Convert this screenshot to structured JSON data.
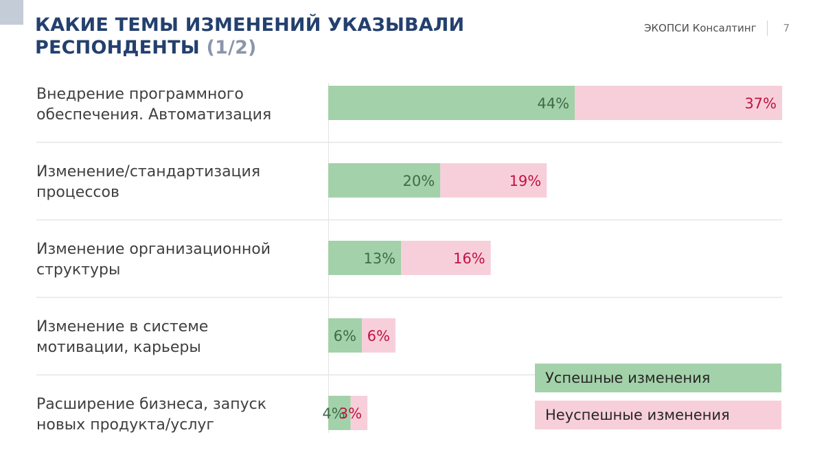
{
  "header": {
    "title_line1": "КАКИЕ ТЕМЫ ИЗМЕНЕНИЙ УКАЗЫВАЛИ",
    "title_line2": "РЕСПОНДЕНТЫ",
    "title_part": "(1/2)",
    "company": "ЭКОПСИ Консалтинг",
    "page_number": "7"
  },
  "colors": {
    "success": "#a3d1a9",
    "fail": "#f7cfdb",
    "title": "#23406e"
  },
  "chart_data": {
    "type": "bar",
    "orientation": "horizontal",
    "stacked": true,
    "categories": [
      [
        "Внедрение программного",
        "обеспечения. Автоматизация"
      ],
      [
        "Изменение/стандартизация",
        "процессов"
      ],
      [
        "Изменение организационной",
        "структуры"
      ],
      [
        "Изменение в системе",
        "мотивации, карьеры"
      ],
      [
        "Расширение бизнеса, запуск",
        "новых продукта/услуг"
      ]
    ],
    "series": [
      {
        "name": "Успешные изменения",
        "values": [
          44,
          20,
          13,
          6,
          4
        ],
        "labels": [
          "44%",
          "20%",
          "13%",
          "6%",
          "4%"
        ]
      },
      {
        "name": "Неуспешные изменения",
        "values": [
          37,
          19,
          16,
          6,
          3
        ],
        "labels": [
          "37%",
          "19%",
          "16%",
          "6%",
          "3%"
        ]
      }
    ],
    "xlim": [
      0,
      81
    ],
    "legend_position": "bottom-right",
    "grid": false
  }
}
